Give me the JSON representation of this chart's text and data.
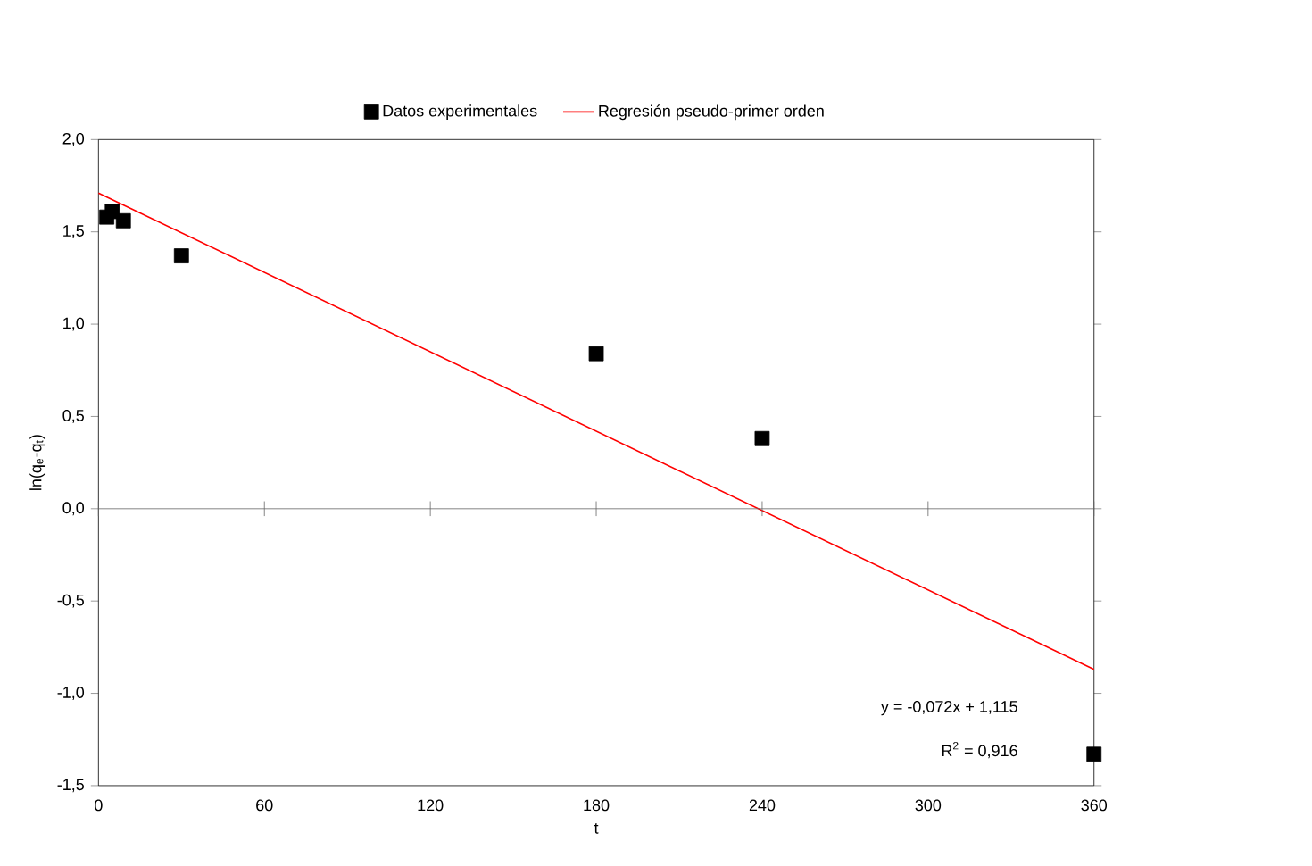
{
  "chart_data": {
    "type": "scatter",
    "xlabel": "t",
    "ylabel": "ln(q$_{e}$-q$_{t}$)",
    "legend": "top",
    "marker": "square",
    "xlim": [
      0,
      360
    ],
    "xticks": [
      0,
      60,
      120,
      180,
      240,
      300,
      360
    ],
    "ylim": [
      -1.5,
      2.0
    ],
    "yticks": [
      {
        "value": -1.5,
        "label": "-1,5"
      },
      {
        "value": -1.0,
        "label": "-1,0"
      },
      {
        "value": -0.5,
        "label": "-0,5"
      },
      {
        "value": 0,
        "label": "0,0"
      },
      {
        "value": 0.5,
        "label": "0,5"
      },
      {
        "value": 1.0,
        "label": "1,0"
      },
      {
        "value": 1.5,
        "label": "1,5"
      },
      {
        "value": 2.0,
        "label": "2,0"
      }
    ],
    "series": [
      {
        "name": "Datos experimentales",
        "color": "#000000",
        "x": [
          3,
          5,
          9,
          30,
          180,
          240,
          360
        ],
        "values": [
          1.58,
          1.61,
          1.56,
          1.37,
          0.84,
          0.38,
          -1.33
        ]
      },
      {
        "name": "Regresión pseudo-primer orden",
        "type": "line",
        "color": "#ff0000",
        "marker": "none",
        "x": [
          0,
          360
        ],
        "values": [
          1.71,
          -0.87
        ]
      }
    ],
    "annotations": [
      "y = -0,072x + 1,115",
      "R$^{2}$ = 0,916"
    ]
  }
}
